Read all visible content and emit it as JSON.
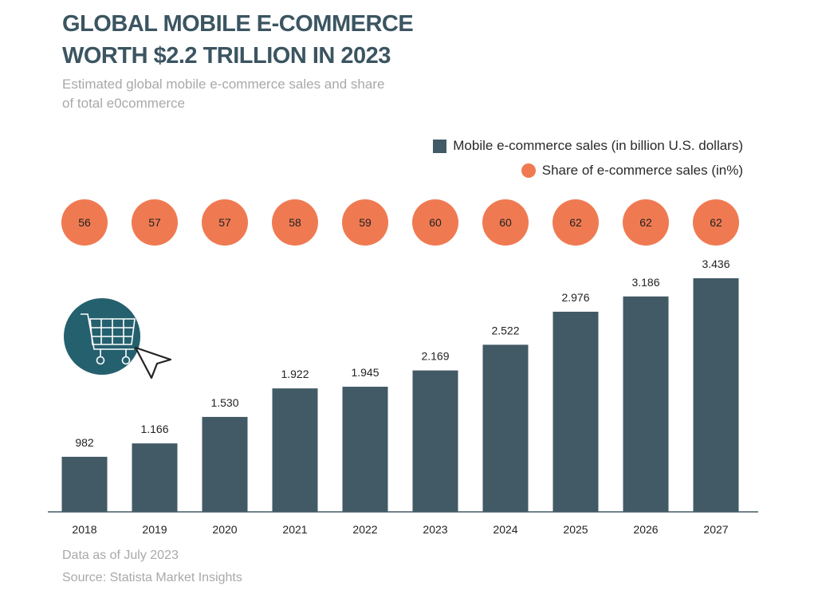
{
  "chart_data": {
    "type": "bar",
    "title": "GLOBAL MOBILE E-COMMERCE WORTH $2.2 TRILLION IN 2023",
    "subtitle": "Estimated global mobile e-commerce sales and share of total e0commerce",
    "categories": [
      "2018",
      "2019",
      "2020",
      "2021",
      "2022",
      "2023",
      "2024",
      "2025",
      "2026",
      "2027"
    ],
    "series": [
      {
        "name": "Mobile e-commerce sales (in billion U.S. dollars)",
        "values": [
          982,
          1166,
          1530,
          1922,
          1945,
          2169,
          2522,
          2976,
          3186,
          3436
        ],
        "value_labels": [
          "982",
          "1.166",
          "1.530",
          "1.922",
          "1.945",
          "2.169",
          "2.522",
          "2.976",
          "3.186",
          "3.436"
        ],
        "color": "#425a65"
      },
      {
        "name": "Share of e-commerce sales (in%)",
        "values": [
          56,
          57,
          57,
          58,
          59,
          60,
          60,
          62,
          62,
          62
        ],
        "color": "#ef7a52",
        "marker": "circle"
      }
    ],
    "xlabel": "",
    "ylabel": "",
    "grid": false,
    "legend": "top-right",
    "footnote": "Data as of July 2023",
    "source": "Source: Statista Market Insights"
  },
  "icon": "shopping-cart-cursor-icon",
  "colors": {
    "title": "#3b5561",
    "icon_bg": "#25606e"
  }
}
